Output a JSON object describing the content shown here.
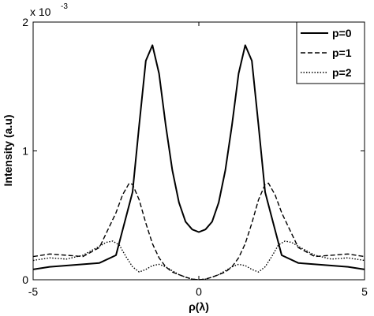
{
  "chart_data": {
    "type": "line",
    "xlabel": "ρ(λ)",
    "ylabel": "Intensity (a.u)",
    "xlim": [
      -5,
      5
    ],
    "ylim": [
      0,
      0.002
    ],
    "x_ticks": [
      -5,
      0,
      5
    ],
    "x_tick_labels": [
      "-5",
      "0",
      "5"
    ],
    "y_ticks": [
      0,
      0.001,
      0.002
    ],
    "y_tick_labels": [
      "0",
      "1",
      "2"
    ],
    "y_multiplier_label": "x 10",
    "y_multiplier_exponent": "-3",
    "grid": false,
    "legend_position": "top-right",
    "series": [
      {
        "name": "p=0",
        "style": "solid",
        "color": "#000000",
        "x": [
          -5.0,
          -4.5,
          -4.0,
          -3.5,
          -3.0,
          -2.5,
          -2.0,
          -1.8,
          -1.6,
          -1.4,
          -1.2,
          -1.0,
          -0.8,
          -0.6,
          -0.4,
          -0.2,
          0.0,
          0.2,
          0.4,
          0.6,
          0.8,
          1.0,
          1.2,
          1.4,
          1.6,
          1.8,
          2.0,
          2.5,
          3.0,
          3.5,
          4.0,
          4.5,
          5.0
        ],
        "y": [
          8e-05,
          0.0001,
          0.00011,
          0.00012,
          0.00013,
          0.00019,
          0.00068,
          0.0012,
          0.0017,
          0.00182,
          0.0016,
          0.0012,
          0.00085,
          0.0006,
          0.00045,
          0.00039,
          0.00037,
          0.00039,
          0.00045,
          0.0006,
          0.00085,
          0.0012,
          0.0016,
          0.00182,
          0.0017,
          0.0012,
          0.00068,
          0.00019,
          0.00013,
          0.00012,
          0.00011,
          0.0001,
          8e-05
        ]
      },
      {
        "name": "p=1",
        "style": "dashed",
        "color": "#000000",
        "x": [
          -5.0,
          -4.5,
          -4.0,
          -3.5,
          -3.0,
          -2.5,
          -2.3,
          -2.1,
          -2.0,
          -1.8,
          -1.6,
          -1.4,
          -1.2,
          -1.0,
          -0.8,
          -0.6,
          -0.4,
          -0.2,
          0.0,
          0.2,
          0.4,
          0.6,
          0.8,
          1.0,
          1.2,
          1.4,
          1.6,
          1.8,
          2.0,
          2.1,
          2.3,
          2.5,
          3.0,
          3.5,
          4.0,
          4.5,
          5.0
        ],
        "y": [
          0.00018,
          0.0002,
          0.00019,
          0.00018,
          0.00025,
          0.00052,
          0.00066,
          0.00075,
          0.00074,
          0.00062,
          0.00044,
          0.00028,
          0.00017,
          0.0001,
          6e-05,
          4e-05,
          2e-05,
          5e-06,
          0.0,
          5e-06,
          2e-05,
          4e-05,
          6e-05,
          0.0001,
          0.00017,
          0.00028,
          0.00044,
          0.00062,
          0.00074,
          0.00075,
          0.00066,
          0.00052,
          0.00025,
          0.00018,
          0.00019,
          0.0002,
          0.00018
        ]
      },
      {
        "name": "p=2",
        "style": "dotted",
        "color": "#000000",
        "x": [
          -5.0,
          -4.5,
          -4.0,
          -3.5,
          -3.0,
          -2.8,
          -2.6,
          -2.4,
          -2.2,
          -2.0,
          -1.8,
          -1.6,
          -1.4,
          -1.2,
          -1.0,
          -0.8,
          -0.6,
          -0.4,
          -0.2,
          0.0,
          0.2,
          0.4,
          0.6,
          0.8,
          1.0,
          1.2,
          1.4,
          1.6,
          1.8,
          2.0,
          2.2,
          2.4,
          2.6,
          2.8,
          3.0,
          3.5,
          4.0,
          4.5,
          5.0
        ],
        "y": [
          0.00015,
          0.00017,
          0.00016,
          0.00019,
          0.00026,
          0.00029,
          0.0003,
          0.00027,
          0.00018,
          0.0001,
          6e-05,
          8e-05,
          0.00011,
          0.00012,
          0.0001,
          7e-05,
          4e-05,
          2e-05,
          5e-06,
          0.0,
          5e-06,
          2e-05,
          4e-05,
          7e-05,
          0.0001,
          0.00012,
          0.00011,
          8e-05,
          6e-05,
          0.0001,
          0.00018,
          0.00027,
          0.0003,
          0.00029,
          0.00026,
          0.00019,
          0.00016,
          0.00017,
          0.00015
        ]
      }
    ]
  }
}
